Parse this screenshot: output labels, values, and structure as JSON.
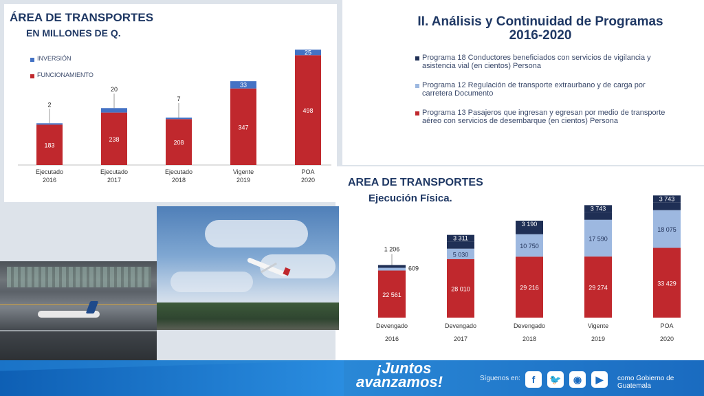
{
  "chart1": {
    "title": "ÁREA DE TRANSPORTES",
    "subtitle": "EN MILLONES DE Q.",
    "legend": [
      {
        "name": "INVERSIÓN",
        "color": "#4472c4"
      },
      {
        "name": "FUNCIONAMIENTO",
        "color": "#c0282d"
      }
    ]
  },
  "chart_data": [
    {
      "type": "bar",
      "stacked": true,
      "title": "ÁREA DE TRANSPORTES",
      "subtitle": "EN MILLONES DE Q.",
      "categories": [
        "Ejecutado 2016",
        "Ejecutado 2017",
        "Ejecutado 2018",
        "Vigente 2019",
        "POA 2020"
      ],
      "category_lines": [
        [
          "Ejecutado",
          "2016"
        ],
        [
          "Ejecutado",
          "2017"
        ],
        [
          "Ejecutado",
          "2018"
        ],
        [
          "Vigente",
          "2019"
        ],
        [
          "POA",
          "2020"
        ]
      ],
      "series": [
        {
          "name": "FUNCIONAMIENTO",
          "color": "#c0282d",
          "values": [
            183,
            238,
            208,
            347,
            498
          ]
        },
        {
          "name": "INVERSIÓN",
          "color": "#4472c4",
          "values": [
            2,
            20,
            7,
            33,
            25
          ]
        }
      ],
      "ylim": [
        0,
        530
      ]
    },
    {
      "type": "bar",
      "stacked": true,
      "title": "AREA DE TRANSPORTES",
      "subtitle": "Ejecución Física.",
      "categories": [
        "Devengado 2016",
        "Devengado 2017",
        "Devengado 2018",
        "Vigente 2019",
        "POA 2020"
      ],
      "category_lines": [
        [
          "Devengado",
          "2016"
        ],
        [
          "Devengado",
          "2017"
        ],
        [
          "Devengado",
          "2018"
        ],
        [
          "Vigente",
          "2019"
        ],
        [
          "POA",
          "2020"
        ]
      ],
      "series": [
        {
          "name": "Programa 13 Pasajeros que ingresan y egresan por medio de transporte aéreo con servicios de desembarque (en cientos) Persona",
          "color": "#c0282d",
          "values": [
            22561,
            28010,
            29216,
            29274,
            33429
          ],
          "labels": [
            "22 561",
            "28 010",
            "29 216",
            "29 274",
            "33 429"
          ]
        },
        {
          "name": "Programa 12 Regulación de transporte extraurbano y de carga por carretera Documento",
          "color": "#9db8e0",
          "values": [
            609,
            5030,
            10750,
            17590,
            18075
          ],
          "labels": [
            "609",
            "5 030",
            "10 750",
            "17 590",
            "18 075"
          ]
        },
        {
          "name": "Programa 18 Conductores beneficiados con servicios de vigilancia y asistencia vial (en cientos) Persona",
          "color": "#1f2f55",
          "values": [
            1206,
            3311,
            3190,
            3743,
            3743
          ],
          "labels": [
            "1 206",
            "3 311",
            "3 190",
            "3 743",
            "3 743"
          ]
        }
      ],
      "ylim": [
        0,
        56000
      ]
    }
  ],
  "programs": {
    "title_line1": "II. Análisis y Continuidad de Programas",
    "title_line2": "2016-2020",
    "items": [
      {
        "text": "Programa 18 Conductores beneficiados con servicios de vigilancia y asistencia vial (en cientos) Persona",
        "color": "#1f2f55"
      },
      {
        "text": "Programa 12 Regulación de transporte extraurbano y de carga por carretera Documento",
        "color": "#9db8e0"
      },
      {
        "text": "Programa 13 Pasajeros que ingresan y egresan por medio de transporte aéreo con servicios de desembarque (en cientos) Persona",
        "color": "#c0282d"
      }
    ]
  },
  "footer": {
    "slogan_line1": "¡Juntos",
    "slogan_line2": "avanzamos!",
    "follow_label": "Síguenos en:",
    "social": [
      "facebook-icon",
      "twitter-icon",
      "instagram-icon",
      "youtube-icon"
    ],
    "handle": "como Gobierno de Guatemala"
  }
}
